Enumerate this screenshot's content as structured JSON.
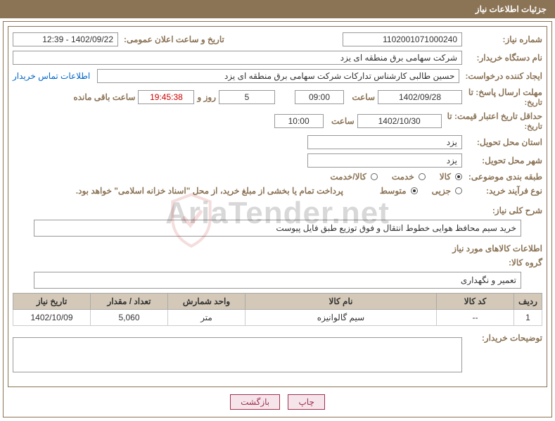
{
  "header": "جزئیات اطلاعات نیاز",
  "labels": {
    "need_no": "شماره نیاز:",
    "announce": "تاریخ و ساعت اعلان عمومی:",
    "buyer": "نام دستگاه خریدار:",
    "requester": "ایجاد کننده درخواست:",
    "buyer_contact": "اطلاعات تماس خریدار",
    "deadline": "مهلت ارسال پاسخ: تا",
    "deadline_sub": "تاریخ:",
    "hour": "ساعت",
    "days_and": "روز و",
    "remain": "ساعت باقی مانده",
    "validity": "حداقل تاریخ اعتبار قیمت: تا",
    "validity_sub": "تاریخ:",
    "province": "استان محل تحویل:",
    "city": "شهر محل تحویل:",
    "category": "طبقه بندی موضوعی:",
    "process": "نوع فرآیند خرید:",
    "payment_note": "پرداخت تمام یا بخشی از مبلغ خرید، از محل \"اسناد خزانه اسلامی\" خواهد بود.",
    "desc": "شرح کلی نیاز:",
    "goods_info": "اطلاعات کالاهای مورد نیاز",
    "group": "گروه کالا:",
    "remarks": "توضیحات خریدار:"
  },
  "values": {
    "need_no": "1102001071000240",
    "announce": "1402/09/22 - 12:39",
    "buyer": "شرکت سهامی برق منطقه ای یزد",
    "requester": "حسین طالبی کارشناس تدارکات شرکت سهامی برق منطقه ای یزد",
    "deadline_date": "1402/09/28",
    "deadline_time": "09:00",
    "days_left": "5",
    "countdown": "19:45:38",
    "validity_date": "1402/10/30",
    "validity_time": "10:00",
    "province": "یزد",
    "city": "یزد",
    "desc": "خرید سیم محافظ هوایی خطوط انتقال و فوق توزیع طبق فایل پیوست",
    "group": "تعمیر و نگهداری"
  },
  "radios": {
    "category": {
      "options": [
        "کالا",
        "خدمت",
        "کالا/خدمت"
      ],
      "selected": 0
    },
    "process": {
      "options": [
        "جزیی",
        "متوسط"
      ],
      "selected": 1
    }
  },
  "table": {
    "headers": [
      "ردیف",
      "کد کالا",
      "نام کالا",
      "واحد شمارش",
      "تعداد / مقدار",
      "تاریخ نیاز"
    ],
    "rows": [
      [
        "1",
        "--",
        "سیم گالوانیزه",
        "متر",
        "5,060",
        "1402/10/09"
      ]
    ]
  },
  "buttons": {
    "print": "چاپ",
    "back": "بازگشت"
  },
  "watermark": "AriaTender.net",
  "colors": {
    "brand": "#8b7355"
  }
}
